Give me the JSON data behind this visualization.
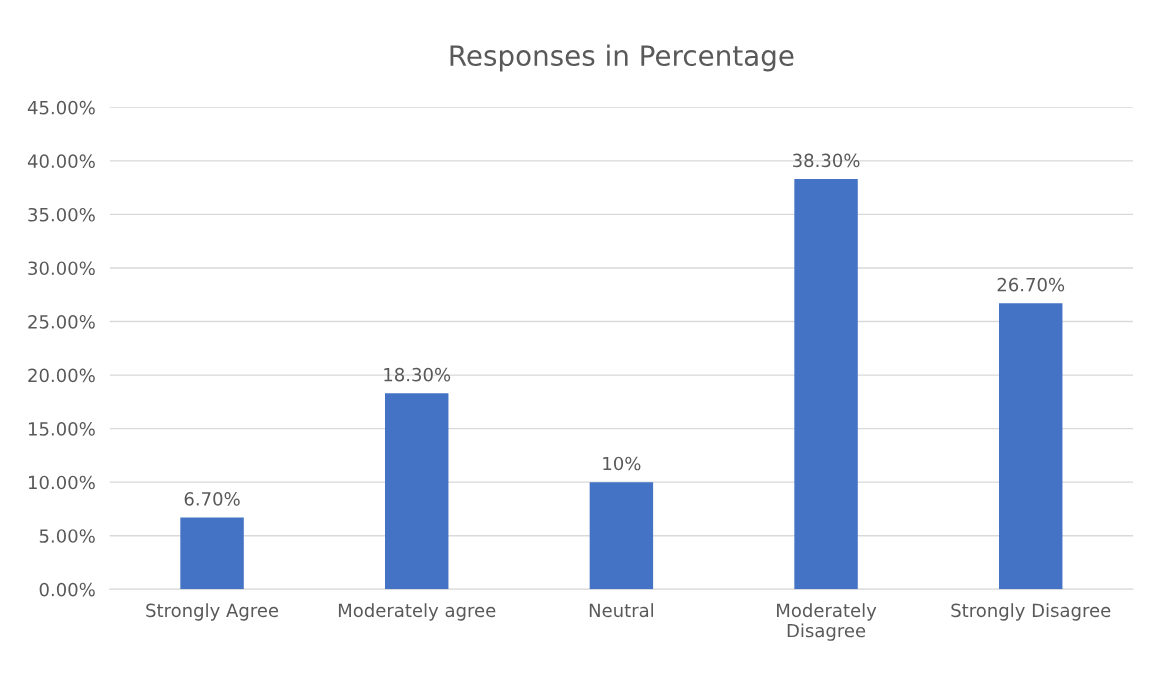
{
  "chart_data": {
    "type": "bar",
    "title": "Responses in Percentage",
    "categories": [
      "Strongly Agree",
      "Moderately agree",
      "Neutral",
      "Moderately Disagree",
      "Strongly Disagree"
    ],
    "values": [
      6.7,
      18.3,
      10,
      38.3,
      26.7
    ],
    "value_labels": [
      "6.70%",
      "18.30%",
      "10%",
      "38.30%",
      "26.70%"
    ],
    "color": "#4472c4",
    "ylim": [
      0,
      45
    ],
    "yticks": [
      {
        "value": 0,
        "label": "0.00%"
      },
      {
        "value": 5,
        "label": "5.00%"
      },
      {
        "value": 10,
        "label": "10.00%"
      },
      {
        "value": 15,
        "label": "15.00%"
      },
      {
        "value": 20,
        "label": "20.00%"
      },
      {
        "value": 25,
        "label": "25.00%"
      },
      {
        "value": 30,
        "label": "30.00%"
      },
      {
        "value": 35,
        "label": "35.00%"
      },
      {
        "value": 40,
        "label": "40.00%"
      },
      {
        "value": 45,
        "label": "45.00%"
      }
    ],
    "grid": "y",
    "legend": false
  }
}
